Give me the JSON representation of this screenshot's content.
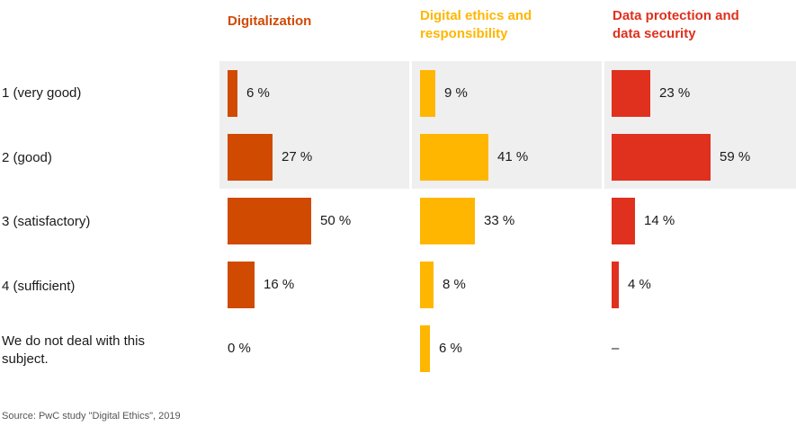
{
  "chart_data": {
    "type": "bar",
    "orientation": "horizontal",
    "title": "",
    "xlim": [
      0,
      100
    ],
    "grid": false,
    "categories": [
      "1 (very good)",
      "2 (good)",
      "3 (satisfactory)",
      "4 (sufficient)",
      "We do not deal with this subject."
    ],
    "series": [
      {
        "name": "Digitalization",
        "color": "#d04a02",
        "values": [
          6,
          27,
          50,
          16,
          0
        ],
        "labels": [
          "6 %",
          "27 %",
          "50 %",
          "16 %",
          "0 %"
        ]
      },
      {
        "name": "Digital ethics and responsibility",
        "color": "#ffb600",
        "values": [
          9,
          41,
          33,
          8,
          6
        ],
        "labels": [
          "9 %",
          "41 %",
          "33 %",
          "8 %",
          "6 %"
        ]
      },
      {
        "name": "Data protection and data security",
        "color": "#e0301e",
        "values": [
          23,
          59,
          14,
          4,
          null
        ],
        "labels": [
          "23 %",
          "59 %",
          "14 %",
          "4 %",
          "–"
        ]
      }
    ],
    "highlighted_rows": [
      "1 (very good)",
      "2 (good)"
    ],
    "source": "Source: PwC study \"Digital Ethics\", 2019"
  }
}
